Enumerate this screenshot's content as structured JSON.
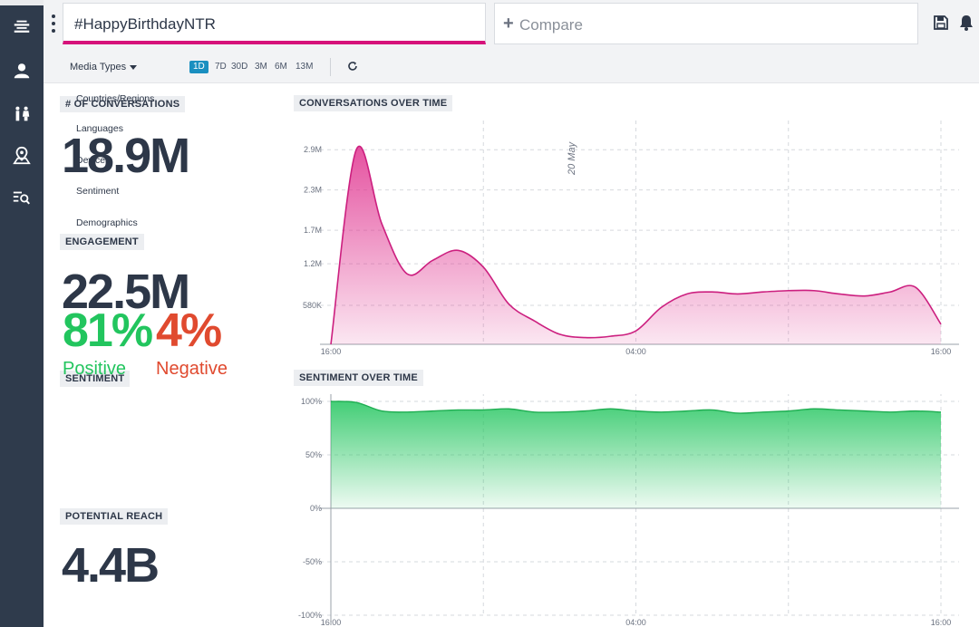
{
  "topbar": {
    "query": "#HappyBirthdayNTR",
    "compare_label": "Compare"
  },
  "filterbar": {
    "media_types": "Media Types",
    "ranges": [
      "1D",
      "7D",
      "30D",
      "3M",
      "6M",
      "13M"
    ],
    "active_range": "1D"
  },
  "dropdown": {
    "items": [
      "Countries/Regions",
      "Languages",
      "Devices",
      "Sentiment",
      "Demographics"
    ]
  },
  "metrics": {
    "conversations_label": "# OF CONVERSATIONS",
    "conversations_value": "18.9M",
    "engagement_label": "ENGAGEMENT",
    "engagement_value": "22.5M",
    "sentiment_label": "SENTIMENT",
    "positive_value": "81%",
    "positive_label": "Positive",
    "negative_value": "4%",
    "negative_label": "Negative",
    "reach_label": "POTENTIAL REACH",
    "reach_value": "4.4B"
  },
  "colors": {
    "accent": "#d6127a",
    "positive": "#22c55e",
    "negative": "#e04a2f",
    "sidebar": "#2f3b4c",
    "active_range": "#1a8fc0"
  },
  "chart_data": [
    {
      "type": "area",
      "title": "CONVERSATIONS OVER TIME",
      "y_ticks": [
        "580K",
        "1.2M",
        "1.7M",
        "2.3M",
        "2.9M"
      ],
      "x_ticks": [
        "16:00",
        "04:00",
        "16:00"
      ],
      "annotation": "20 May",
      "color": "#e0338f",
      "x": [
        0,
        1,
        2,
        3,
        4,
        5,
        6,
        7,
        8,
        9,
        10,
        11,
        12,
        13,
        14,
        15,
        16,
        17,
        18,
        19,
        20,
        21,
        22,
        23,
        24
      ],
      "values": [
        0,
        2.9,
        1.8,
        1.05,
        1.25,
        1.4,
        1.15,
        0.6,
        0.35,
        0.15,
        0.1,
        0.12,
        0.2,
        0.55,
        0.75,
        0.78,
        0.75,
        0.78,
        0.8,
        0.8,
        0.75,
        0.72,
        0.78,
        0.85,
        0.3
      ],
      "ylim": [
        0,
        3.2
      ]
    },
    {
      "type": "area",
      "title": "SENTIMENT OVER TIME",
      "y_ticks": [
        "100%",
        "50%",
        "0%",
        "-50%",
        "-100%"
      ],
      "x_ticks": [
        "16:00",
        "04:00",
        "16:00"
      ],
      "color": "#22c55e",
      "x": [
        0,
        1,
        2,
        3,
        4,
        5,
        6,
        7,
        8,
        9,
        10,
        11,
        12,
        13,
        14,
        15,
        16,
        17,
        18,
        19,
        20,
        21,
        22,
        23,
        24
      ],
      "values": [
        100,
        99,
        91,
        90,
        91,
        92,
        92,
        93,
        90,
        90,
        91,
        93,
        91,
        90,
        91,
        92,
        89,
        90,
        91,
        93,
        92,
        91,
        90,
        91,
        90
      ],
      "ylim": [
        -100,
        100
      ]
    }
  ]
}
